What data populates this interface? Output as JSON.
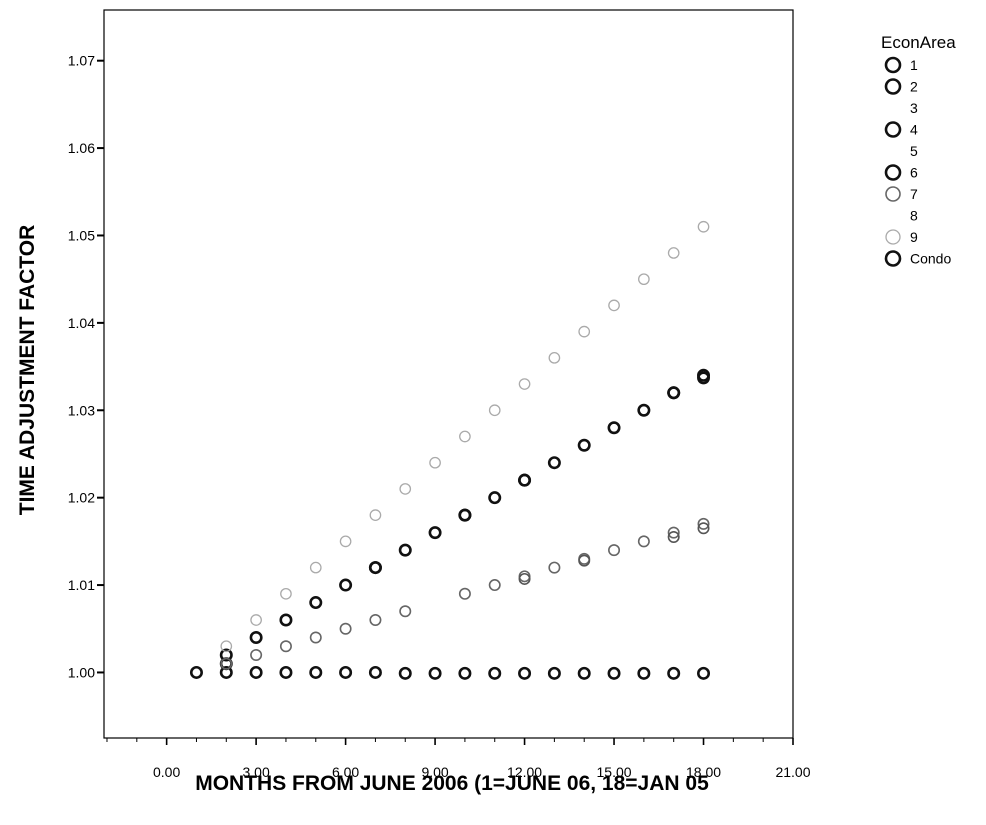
{
  "chart_data": {
    "type": "scatter",
    "title": "",
    "xlabel": "MONTHS FROM JUNE 2006 (1=JUNE 06, 18=JAN 05",
    "ylabel": "TIME ADJUSTMENT FACTOR",
    "xlim": [
      -2.1,
      21.0
    ],
    "ylim": [
      0.9925,
      1.0758
    ],
    "x_ticks": [
      "0.00",
      "3.00",
      "6.00",
      "9.00",
      "12.00",
      "15.00",
      "18.00",
      "21.00"
    ],
    "x_tick_values": [
      0,
      3,
      6,
      9,
      12,
      15,
      18,
      21
    ],
    "y_ticks": [
      "1.00",
      "1.01",
      "1.02",
      "1.03",
      "1.04",
      "1.05",
      "1.06",
      "1.07"
    ],
    "y_tick_values": [
      1.0,
      1.01,
      1.02,
      1.03,
      1.04,
      1.05,
      1.06,
      1.07
    ],
    "grid": false,
    "legend": {
      "title": "EconArea",
      "placement": "right",
      "entries": [
        {
          "label": "1",
          "marker": true,
          "color": "#111111"
        },
        {
          "label": "2",
          "marker": true,
          "color": "#111111"
        },
        {
          "label": "3",
          "marker": false,
          "color": "#ffffff"
        },
        {
          "label": "4",
          "marker": true,
          "color": "#111111"
        },
        {
          "label": "5",
          "marker": false,
          "color": "#ffffff"
        },
        {
          "label": "6",
          "marker": true,
          "color": "#111111"
        },
        {
          "label": "7",
          "marker": true,
          "color": "#666666"
        },
        {
          "label": "8",
          "marker": false,
          "color": "#ffffff"
        },
        {
          "label": "9",
          "marker": true,
          "color": "#aaaaaa"
        },
        {
          "label": "Condo",
          "marker": true,
          "color": "#111111"
        }
      ]
    },
    "series": [
      {
        "color": "#111111",
        "points": [
          [
            1,
            1.0
          ],
          [
            2,
            1.0
          ],
          [
            3,
            1.0
          ],
          [
            4,
            1.0
          ],
          [
            5,
            1.0
          ],
          [
            6,
            1.0
          ],
          [
            7,
            1.0
          ],
          [
            8,
            0.9999
          ],
          [
            9,
            0.9999
          ],
          [
            10,
            0.9999
          ],
          [
            11,
            0.9999
          ],
          [
            12,
            0.9999
          ],
          [
            13,
            0.9999
          ],
          [
            14,
            0.9999
          ],
          [
            15,
            0.9999
          ],
          [
            16,
            0.9999
          ],
          [
            17,
            0.9999
          ],
          [
            18,
            0.9999
          ]
        ]
      },
      {
        "color": "#111111",
        "points": [
          [
            2,
            1.002
          ],
          [
            3,
            1.004
          ],
          [
            4,
            1.006
          ],
          [
            5,
            1.008
          ],
          [
            6,
            1.01
          ],
          [
            7,
            1.012
          ],
          [
            8,
            1.014
          ],
          [
            9,
            1.016
          ],
          [
            10,
            1.018
          ],
          [
            11,
            1.02
          ],
          [
            12,
            1.022
          ],
          [
            13,
            1.024
          ],
          [
            14,
            1.026
          ],
          [
            15,
            1.028
          ],
          [
            16,
            1.03
          ],
          [
            17,
            1.032
          ],
          [
            18,
            1.034
          ]
        ]
      },
      {
        "color": "#111111",
        "points": [
          [
            2,
            1.001
          ],
          [
            7,
            1.012
          ],
          [
            10,
            1.018
          ],
          [
            12,
            1.022
          ],
          [
            17,
            1.032
          ],
          [
            18,
            1.0337
          ]
        ]
      },
      {
        "color": "#666666",
        "points": [
          [
            2,
            1.001
          ],
          [
            3,
            1.002
          ],
          [
            4,
            1.003
          ],
          [
            5,
            1.004
          ],
          [
            6,
            1.005
          ],
          [
            7,
            1.006
          ],
          [
            8,
            1.007
          ],
          [
            10,
            1.009
          ],
          [
            11,
            1.01
          ],
          [
            12,
            1.011
          ],
          [
            13,
            1.012
          ],
          [
            14,
            1.013
          ],
          [
            15,
            1.014
          ],
          [
            16,
            1.015
          ],
          [
            17,
            1.016
          ],
          [
            18,
            1.017
          ]
        ]
      },
      {
        "color": "#555555",
        "points": [
          [
            12,
            1.0107
          ],
          [
            14,
            1.0128
          ],
          [
            17,
            1.0155
          ],
          [
            18,
            1.0165
          ]
        ]
      },
      {
        "color": "#aaaaaa",
        "points": [
          [
            2,
            1.003
          ],
          [
            3,
            1.006
          ],
          [
            4,
            1.009
          ],
          [
            5,
            1.012
          ],
          [
            6,
            1.015
          ],
          [
            7,
            1.018
          ],
          [
            8,
            1.021
          ],
          [
            9,
            1.024
          ],
          [
            10,
            1.027
          ],
          [
            11,
            1.03
          ],
          [
            12,
            1.033
          ],
          [
            13,
            1.036
          ],
          [
            14,
            1.039
          ],
          [
            15,
            1.042
          ],
          [
            16,
            1.045
          ],
          [
            17,
            1.048
          ],
          [
            18,
            1.051
          ]
        ]
      }
    ]
  }
}
